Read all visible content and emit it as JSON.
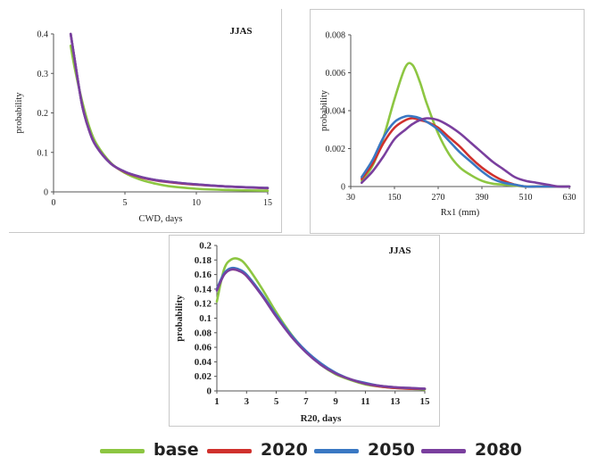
{
  "colors": {
    "base": "#8dc642",
    "2020": "#d0312d",
    "2050": "#3a78c3",
    "2080": "#7a3f9e"
  },
  "legend": {
    "items": [
      {
        "label": "base",
        "color": "#8dc642"
      },
      {
        "label": "2020",
        "color": "#d0312d"
      },
      {
        "label": "2050",
        "color": "#3a78c3"
      },
      {
        "label": "2080",
        "color": "#7a3f9e"
      }
    ]
  },
  "chart_data": [
    {
      "type": "line",
      "title": "JJAS",
      "xlabel": "CWD, days",
      "ylabel": "probability",
      "xlim": [
        0,
        15
      ],
      "ylim": [
        0,
        0.4
      ],
      "xticks": [
        0,
        5,
        10,
        15
      ],
      "yticks": [
        0,
        0.1,
        0.2,
        0.3,
        0.4
      ],
      "x": [
        1.2,
        1.5,
        2,
        2.5,
        3,
        4,
        5,
        6,
        7,
        8,
        10,
        12,
        15
      ],
      "series": [
        {
          "name": "base",
          "color": "#8dc642",
          "values": [
            0.37,
            0.31,
            0.23,
            0.165,
            0.122,
            0.074,
            0.048,
            0.032,
            0.022,
            0.015,
            0.008,
            0.005,
            0.003
          ]
        },
        {
          "name": "2020",
          "color": "#d0312d",
          "values": [
            0.4,
            0.33,
            0.22,
            0.155,
            0.115,
            0.072,
            0.05,
            0.038,
            0.03,
            0.025,
            0.018,
            0.014,
            0.009
          ]
        },
        {
          "name": "2050",
          "color": "#3a78c3",
          "values": [
            0.4,
            0.33,
            0.22,
            0.155,
            0.115,
            0.072,
            0.051,
            0.039,
            0.031,
            0.026,
            0.019,
            0.014,
            0.01
          ]
        },
        {
          "name": "2080",
          "color": "#7a3f9e",
          "values": [
            0.4,
            0.33,
            0.22,
            0.155,
            0.115,
            0.072,
            0.051,
            0.039,
            0.031,
            0.026,
            0.019,
            0.014,
            0.01
          ]
        }
      ]
    },
    {
      "type": "line",
      "title": "",
      "xlabel": "Rx1 (mm)",
      "ylabel": "probability",
      "xlim": [
        30,
        630
      ],
      "ylim": [
        0,
        0.008
      ],
      "xticks": [
        30,
        150,
        270,
        390,
        510,
        630
      ],
      "yticks": [
        0,
        0.002,
        0.004,
        0.006,
        0.008
      ],
      "x": [
        60,
        90,
        120,
        150,
        180,
        200,
        220,
        240,
        270,
        300,
        330,
        360,
        390,
        420,
        450,
        480,
        510,
        540,
        570,
        600,
        630
      ],
      "series": [
        {
          "name": "base",
          "color": "#8dc642",
          "values": [
            0.0003,
            0.0011,
            0.0026,
            0.0046,
            0.0063,
            0.0064,
            0.0055,
            0.0043,
            0.0028,
            0.0017,
            0.001,
            0.0006,
            0.0003,
            0.00015,
            0.0001,
            5e-05,
            0.0,
            0.0,
            0.0,
            0.0,
            0.0
          ]
        },
        {
          "name": "2020",
          "color": "#d0312d",
          "values": [
            0.0004,
            0.0012,
            0.0023,
            0.0031,
            0.0035,
            0.0036,
            0.0035,
            0.0034,
            0.0031,
            0.0026,
            0.0021,
            0.0015,
            0.001,
            0.0006,
            0.0003,
            0.0001,
            0.0,
            0.0,
            0.0,
            0.0,
            0.0
          ]
        },
        {
          "name": "2050",
          "color": "#3a78c3",
          "values": [
            0.0005,
            0.0014,
            0.0026,
            0.0034,
            0.0037,
            0.0037,
            0.0036,
            0.0034,
            0.003,
            0.0024,
            0.0018,
            0.0013,
            0.0008,
            0.0004,
            0.0002,
            0.0001,
            0.0,
            0.0,
            0.0,
            0.0,
            0.0
          ]
        },
        {
          "name": "2080",
          "color": "#7a3f9e",
          "values": [
            0.0002,
            0.0008,
            0.0016,
            0.0025,
            0.003,
            0.0033,
            0.0035,
            0.0036,
            0.0035,
            0.0032,
            0.0028,
            0.0023,
            0.0018,
            0.0013,
            0.0009,
            0.0005,
            0.0003,
            0.0002,
            0.0001,
            0.0,
            0.0
          ]
        }
      ]
    },
    {
      "type": "line",
      "title": "JJAS",
      "xlabel": "R20, days",
      "ylabel": "probability",
      "xlim": [
        1,
        15
      ],
      "ylim": [
        0,
        0.2
      ],
      "xticks": [
        1,
        3,
        5,
        7,
        9,
        11,
        13,
        15
      ],
      "yticks": [
        0,
        0.02,
        0.04,
        0.06,
        0.08,
        0.1,
        0.12,
        0.14,
        0.16,
        0.18,
        0.2
      ],
      "x": [
        1,
        1.5,
        2,
        2.5,
        3,
        4,
        5,
        6,
        7,
        8,
        9,
        10,
        11,
        12,
        13,
        14,
        15
      ],
      "series": [
        {
          "name": "base",
          "color": "#8dc642",
          "values": [
            0.123,
            0.168,
            0.181,
            0.181,
            0.172,
            0.142,
            0.108,
            0.078,
            0.054,
            0.036,
            0.023,
            0.015,
            0.009,
            0.006,
            0.004,
            0.003,
            0.002
          ]
        },
        {
          "name": "2020",
          "color": "#d0312d",
          "values": [
            0.14,
            0.161,
            0.167,
            0.165,
            0.158,
            0.133,
            0.103,
            0.076,
            0.054,
            0.037,
            0.024,
            0.016,
            0.01,
            0.006,
            0.004,
            0.003,
            0.003
          ]
        },
        {
          "name": "2050",
          "color": "#3a78c3",
          "values": [
            0.14,
            0.162,
            0.169,
            0.167,
            0.16,
            0.134,
            0.104,
            0.077,
            0.055,
            0.038,
            0.025,
            0.016,
            0.011,
            0.007,
            0.005,
            0.004,
            0.003
          ]
        },
        {
          "name": "2080",
          "color": "#7a3f9e",
          "values": [
            0.138,
            0.16,
            0.167,
            0.165,
            0.158,
            0.132,
            0.102,
            0.075,
            0.053,
            0.036,
            0.024,
            0.016,
            0.01,
            0.007,
            0.005,
            0.004,
            0.003
          ]
        }
      ]
    }
  ]
}
